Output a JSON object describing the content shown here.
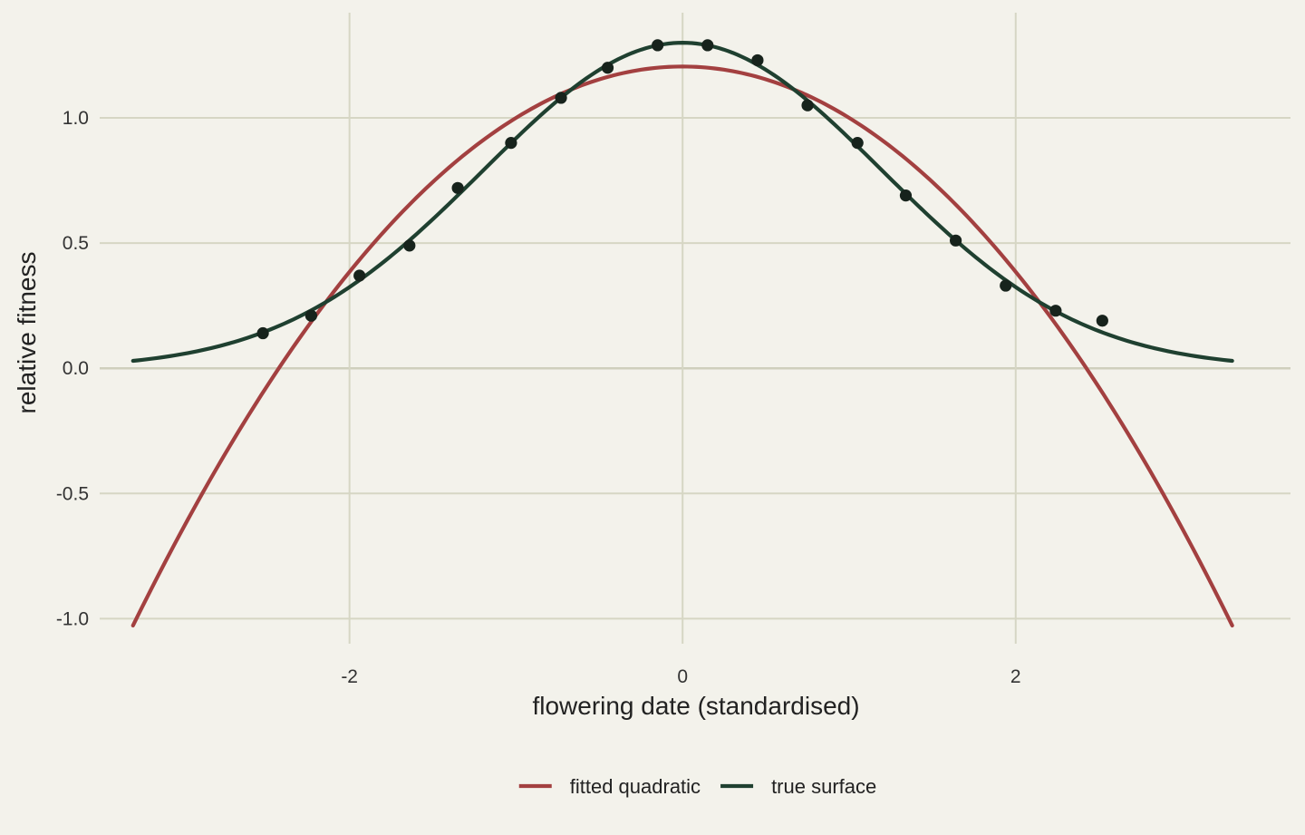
{
  "chart_data": {
    "type": "line",
    "xlabel": "flowering date (standardised)",
    "ylabel": "relative fitness",
    "xlim": [
      -3.5,
      3.65
    ],
    "ylim": [
      -1.1,
      1.42
    ],
    "x_ticks": [
      -2,
      0,
      2
    ],
    "x_tick_labels": [
      "-2",
      "0",
      "2"
    ],
    "y_ticks": [
      -1.0,
      -0.5,
      0.0,
      0.5,
      1.0
    ],
    "y_tick_labels": [
      "-1.0",
      "-0.5",
      "0.0",
      "0.5",
      "1.0"
    ],
    "grid": true,
    "legend_position": "bottom",
    "series": [
      {
        "name": "fitted quadratic",
        "kind": "curve",
        "color": "#a34040",
        "x_range": [
          -3.3,
          3.3
        ],
        "formula": {
          "type": "quadratic",
          "intercept": 1.205,
          "linear": 0.0,
          "quadratic": -0.205
        }
      },
      {
        "name": "true surface",
        "kind": "curve",
        "color": "#1f4030",
        "x_range": [
          -3.3,
          3.3
        ],
        "formula": {
          "type": "gaussian",
          "amplitude": 1.3,
          "sigma": 1.2
        }
      }
    ],
    "points": {
      "color": "#17231c",
      "x": [
        -2.52,
        -2.23,
        -1.94,
        -1.64,
        -1.35,
        -1.03,
        -0.73,
        -0.45,
        -0.15,
        0.15,
        0.45,
        0.75,
        1.05,
        1.34,
        1.64,
        1.94,
        2.24,
        2.52
      ],
      "y": [
        0.14,
        0.21,
        0.37,
        0.49,
        0.72,
        0.9,
        1.08,
        1.2,
        1.29,
        1.29,
        1.23,
        1.05,
        0.9,
        0.69,
        0.51,
        0.33,
        0.23,
        0.19
      ]
    }
  }
}
